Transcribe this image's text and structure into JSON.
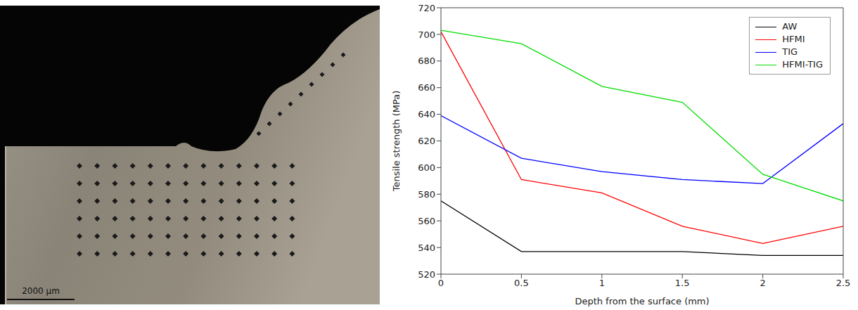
{
  "image": {
    "scale_bar": "2000 μm"
  },
  "chart_data": {
    "type": "line",
    "x_label": "Depth from the surface (mm)",
    "y_label": "Tensile strength (MPa)",
    "x": [
      0,
      0.5,
      1,
      1.5,
      2,
      2.5
    ],
    "xlim": [
      0,
      2.5
    ],
    "xticks": [
      0,
      0.5,
      1,
      1.5,
      2,
      2.5
    ],
    "ylim": [
      520,
      720
    ],
    "yticks": [
      520,
      540,
      560,
      580,
      600,
      620,
      640,
      660,
      680,
      700,
      720
    ],
    "grid": false,
    "legend": "upper right",
    "series": [
      {
        "name": "AW",
        "color": "#000000",
        "values": [
          575,
          537,
          537,
          537,
          534,
          534
        ]
      },
      {
        "name": "HFMI",
        "color": "#ff0000",
        "values": [
          702,
          591,
          581,
          556,
          543,
          556
        ]
      },
      {
        "name": "TIG",
        "color": "#0000ff",
        "values": [
          639,
          607,
          597,
          591,
          588,
          633
        ]
      },
      {
        "name": "HFMI-TIG",
        "color": "#00dd00",
        "values": [
          703,
          693,
          661,
          649,
          595,
          575
        ]
      }
    ]
  }
}
